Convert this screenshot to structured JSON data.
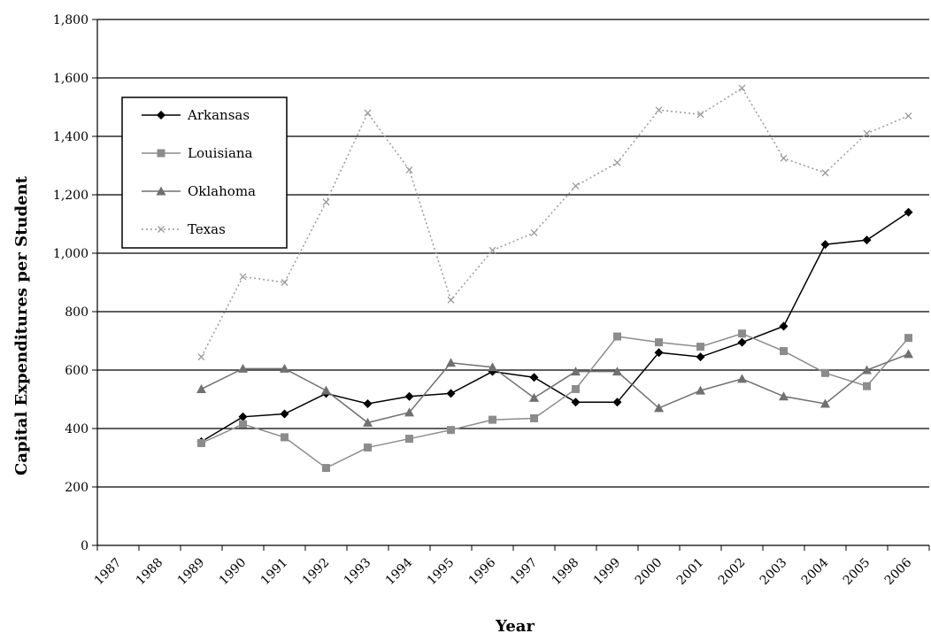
{
  "chart_data": {
    "type": "line",
    "title": "",
    "xlabel": "Year",
    "ylabel": "Capital Expenditures per Student",
    "ylim": [
      0,
      1800
    ],
    "y_ticks": [
      0,
      200,
      400,
      600,
      800,
      1000,
      1200,
      1400,
      1600,
      1800
    ],
    "y_tick_labels": [
      "0",
      "200",
      "400",
      "600",
      "800",
      "1,000",
      "1,200",
      "1,400",
      "1,600",
      "1,800"
    ],
    "categories": [
      "1987",
      "1988",
      "1989",
      "1990",
      "1991",
      "1992",
      "1993",
      "1994",
      "1995",
      "1996",
      "1997",
      "1998",
      "1999",
      "2000",
      "2001",
      "2002",
      "2003",
      "2004",
      "2005",
      "2006"
    ],
    "grid": "horizontal",
    "legend_position": "top-left",
    "series": [
      {
        "name": "Arkansas",
        "color": "#000000",
        "marker": "diamond",
        "dash": "solid",
        "values": [
          null,
          null,
          355,
          440,
          450,
          520,
          485,
          510,
          520,
          595,
          575,
          490,
          490,
          660,
          645,
          695,
          750,
          1030,
          1045,
          1140
        ]
      },
      {
        "name": "Louisiana",
        "color": "#8c8c8c",
        "marker": "square",
        "dash": "solid",
        "values": [
          null,
          null,
          350,
          415,
          370,
          265,
          335,
          365,
          395,
          430,
          435,
          535,
          715,
          695,
          680,
          725,
          665,
          590,
          545,
          710
        ]
      },
      {
        "name": "Oklahoma",
        "color": "#707070",
        "marker": "triangle",
        "dash": "solid",
        "values": [
          null,
          null,
          535,
          605,
          605,
          530,
          420,
          455,
          625,
          610,
          505,
          595,
          595,
          470,
          530,
          570,
          510,
          485,
          600,
          655
        ]
      },
      {
        "name": "Texas",
        "color": "#9a9a9a",
        "marker": "x",
        "dash": "dotted",
        "values": [
          null,
          null,
          645,
          920,
          900,
          1175,
          1480,
          1285,
          840,
          1010,
          1070,
          1230,
          1310,
          1490,
          1475,
          1565,
          1325,
          1275,
          1410,
          1470
        ]
      }
    ]
  }
}
